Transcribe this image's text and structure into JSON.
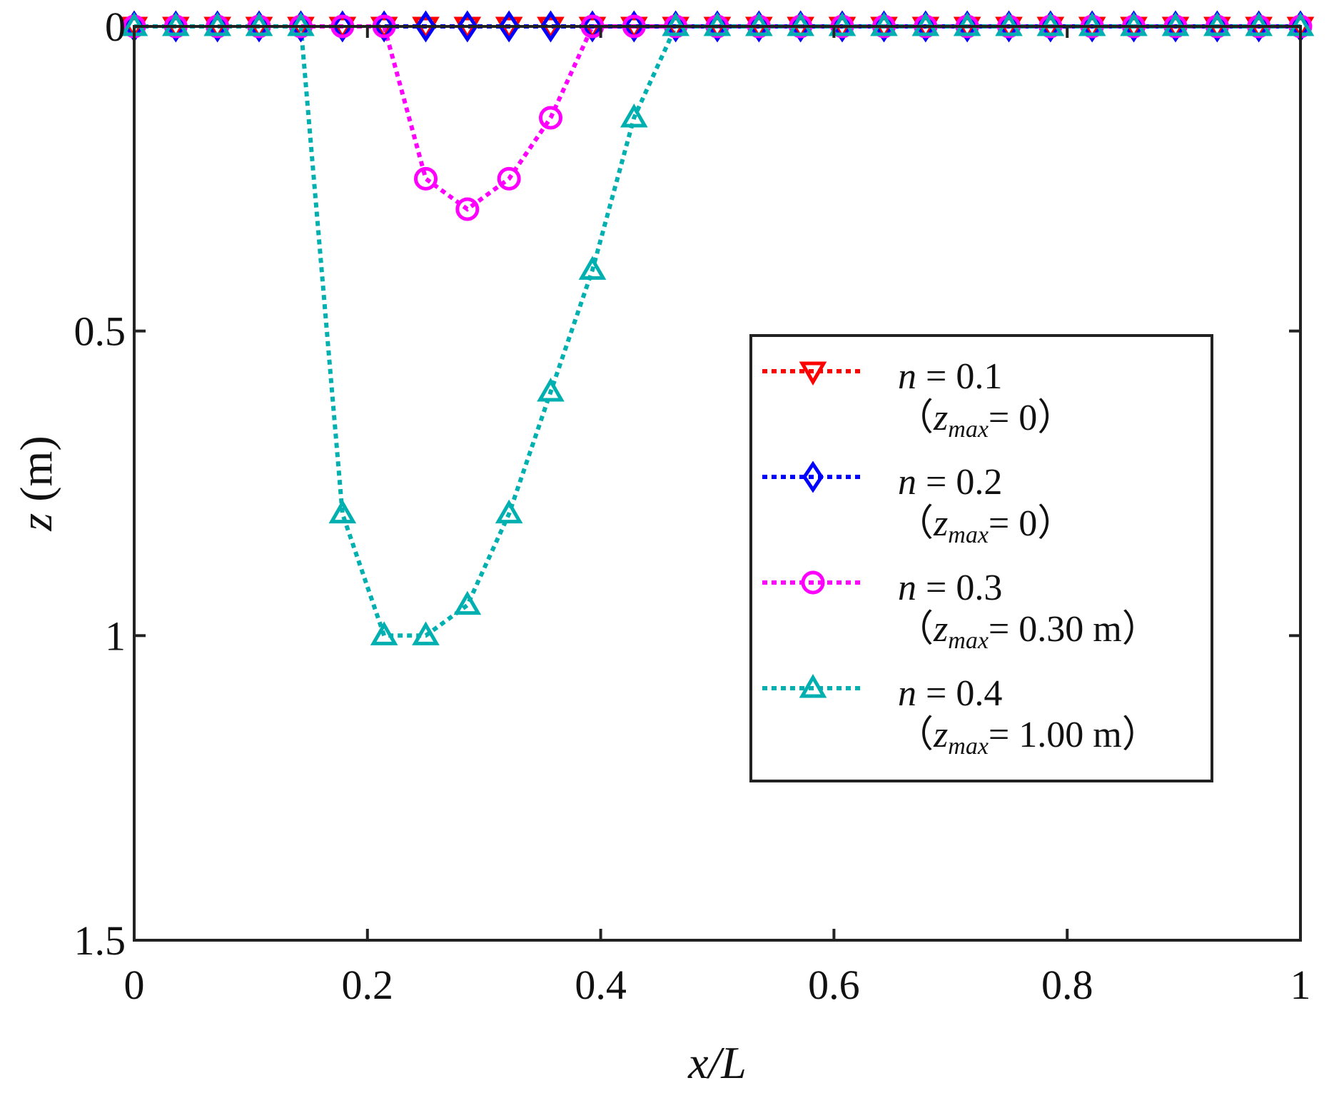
{
  "chart_data": {
    "type": "line",
    "title": "",
    "xlabel": "x/L",
    "ylabel_var": "z",
    "ylabel_unit": " (m)",
    "xlim": [
      0,
      1
    ],
    "ylim": [
      0,
      1.5
    ],
    "y_inverted": true,
    "grid": false,
    "legend_position": "right-center",
    "xticks": [
      0,
      0.2,
      0.4,
      0.6,
      0.8,
      1
    ],
    "xtick_labels": [
      "0",
      "0.2",
      "0.4",
      "0.6",
      "0.8",
      "1"
    ],
    "yticks": [
      0,
      0.5,
      1,
      1.5
    ],
    "ytick_labels": [
      "0",
      "0.5",
      "1",
      "1.5"
    ],
    "series": [
      {
        "name": "n = 0.1",
        "n_label": "n",
        "n_value": " = 0.1",
        "zmax_value": "= 0",
        "color": "#ff0000",
        "marker": "triangle-down",
        "x": [
          0,
          0.0357,
          0.0714,
          0.1071,
          0.1429,
          0.1786,
          0.2143,
          0.25,
          0.2857,
          0.3214,
          0.3571,
          0.3929,
          0.4286,
          0.4643,
          0.5,
          0.5357,
          0.5714,
          0.6071,
          0.6429,
          0.6786,
          0.7143,
          0.75,
          0.7857,
          0.8214,
          0.8571,
          0.8929,
          0.9286,
          0.9643,
          1
        ],
        "y": [
          0,
          0,
          0,
          0,
          0,
          0,
          0,
          0,
          0,
          0,
          0,
          0,
          0,
          0,
          0,
          0,
          0,
          0,
          0,
          0,
          0,
          0,
          0,
          0,
          0,
          0,
          0,
          0,
          0
        ]
      },
      {
        "name": "n = 0.2",
        "n_label": "n",
        "n_value": " = 0.2",
        "zmax_value": "= 0",
        "color": "#0000ff",
        "marker": "diamond",
        "x": [
          0,
          0.0357,
          0.0714,
          0.1071,
          0.1429,
          0.1786,
          0.2143,
          0.25,
          0.2857,
          0.3214,
          0.3571,
          0.3929,
          0.4286,
          0.4643,
          0.5,
          0.5357,
          0.5714,
          0.6071,
          0.6429,
          0.6786,
          0.7143,
          0.75,
          0.7857,
          0.8214,
          0.8571,
          0.8929,
          0.9286,
          0.9643,
          1
        ],
        "y": [
          0,
          0,
          0,
          0,
          0,
          0,
          0,
          0,
          0,
          0,
          0,
          0,
          0,
          0,
          0,
          0,
          0,
          0,
          0,
          0,
          0,
          0,
          0,
          0,
          0,
          0,
          0,
          0,
          0
        ]
      },
      {
        "name": "n = 0.3",
        "n_label": "n",
        "n_value": " = 0.3",
        "zmax_value": "= 0.30 m",
        "color": "#ff00ff",
        "marker": "circle",
        "x": [
          0,
          0.0357,
          0.0714,
          0.1071,
          0.1429,
          0.1786,
          0.2143,
          0.25,
          0.2857,
          0.3214,
          0.3571,
          0.3929,
          0.4286,
          0.4643,
          0.5,
          0.5357,
          0.5714,
          0.6071,
          0.6429,
          0.6786,
          0.7143,
          0.75,
          0.7857,
          0.8214,
          0.8571,
          0.8929,
          0.9286,
          0.9643,
          1
        ],
        "y": [
          0,
          0,
          0,
          0,
          0,
          0,
          0,
          0.25,
          0.3,
          0.25,
          0.15,
          0,
          0,
          0,
          0,
          0,
          0,
          0,
          0,
          0,
          0,
          0,
          0,
          0,
          0,
          0,
          0,
          0,
          0
        ]
      },
      {
        "name": "n = 0.4",
        "n_label": "n",
        "n_value": " = 0.4",
        "zmax_value": "= 1.00 m",
        "color": "#00b0b0",
        "marker": "triangle-up",
        "x": [
          0,
          0.0357,
          0.0714,
          0.1071,
          0.1429,
          0.1786,
          0.2143,
          0.25,
          0.2857,
          0.3214,
          0.3571,
          0.3929,
          0.4286,
          0.4643,
          0.5,
          0.5357,
          0.5714,
          0.6071,
          0.6429,
          0.6786,
          0.7143,
          0.75,
          0.7857,
          0.8214,
          0.8571,
          0.8929,
          0.9286,
          0.9643,
          1
        ],
        "y": [
          0,
          0,
          0,
          0,
          0,
          0.8,
          1.0,
          1.0,
          0.95,
          0.8,
          0.6,
          0.4,
          0.15,
          0,
          0,
          0,
          0,
          0,
          0,
          0,
          0,
          0,
          0,
          0,
          0,
          0,
          0,
          0,
          0
        ]
      }
    ]
  },
  "legend": {
    "zmax_prefix_paren": "（",
    "zmax_var": "z",
    "zmax_sub": "max",
    "zmax_suffix_paren": "）"
  }
}
